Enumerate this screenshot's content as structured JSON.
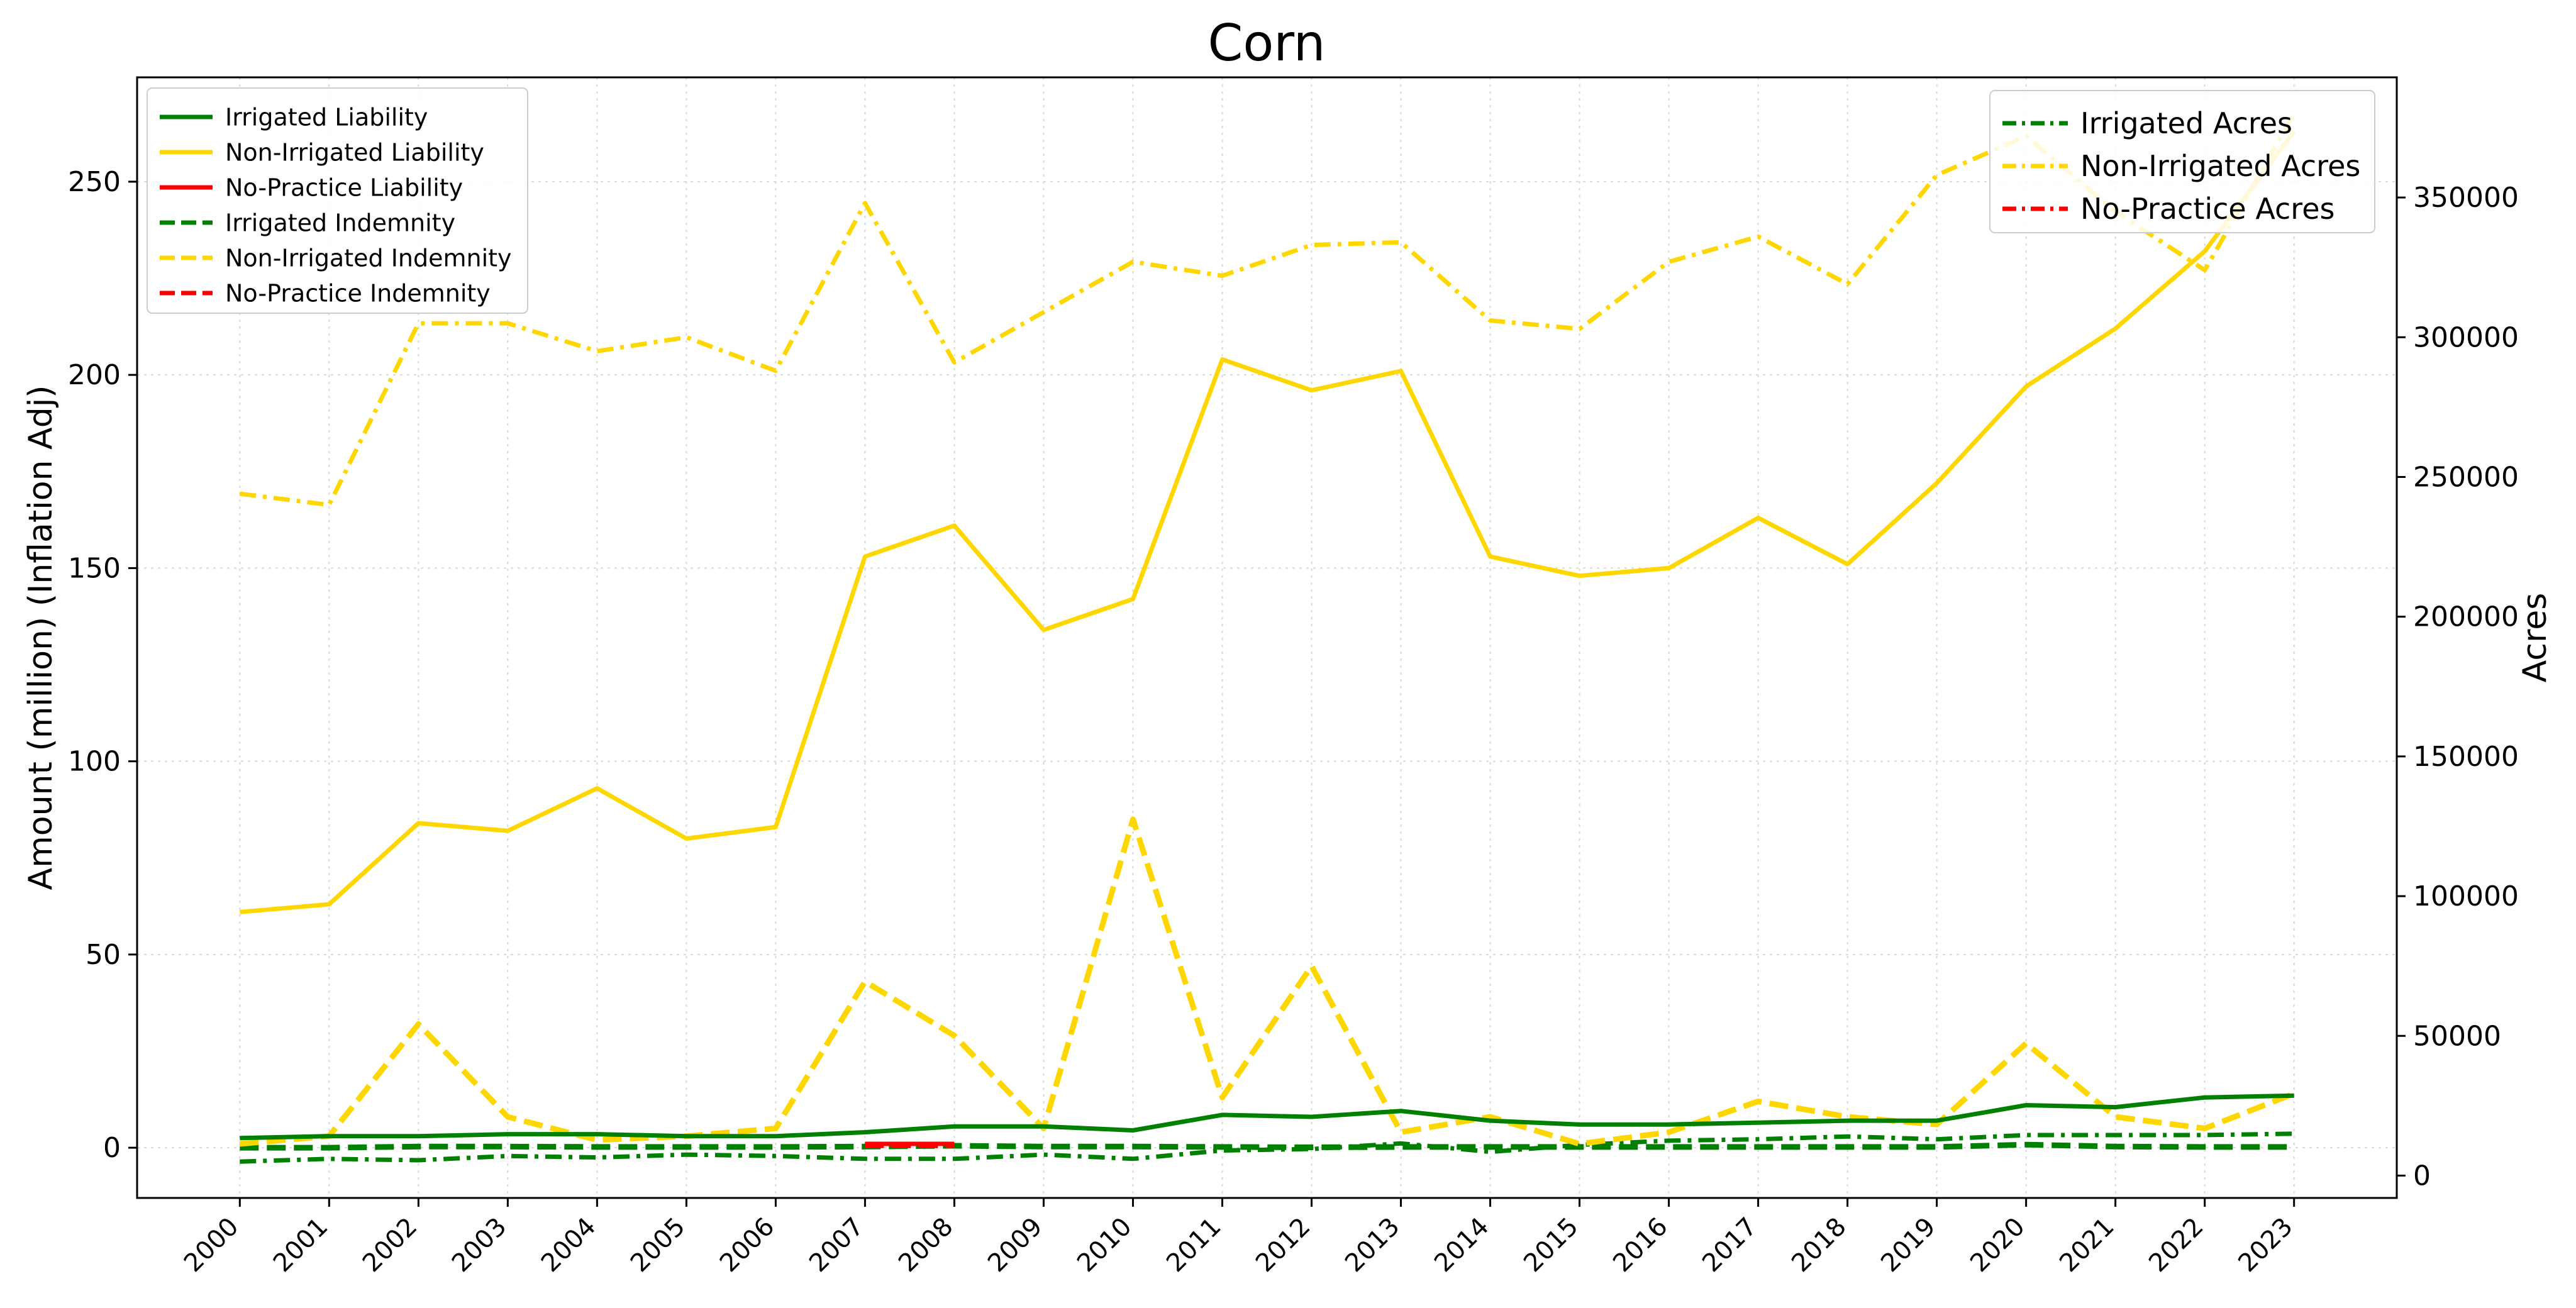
{
  "chart_data": {
    "type": "line",
    "title": "Corn",
    "xlabel": "",
    "ylabel": "Amount (million) (Inflation Adj)",
    "y2label": "Acres",
    "grid": true,
    "x": [
      "2000",
      "2001",
      "2002",
      "2003",
      "2004",
      "2005",
      "2006",
      "2007",
      "2008",
      "2009",
      "2010",
      "2011",
      "2012",
      "2013",
      "2014",
      "2015",
      "2016",
      "2017",
      "2018",
      "2019",
      "2020",
      "2021",
      "2022",
      "2023"
    ],
    "xlim": [
      1998.85,
      2024.15
    ],
    "ylim": [
      -13,
      277
    ],
    "y2lim": [
      -8000,
      393000
    ],
    "yticks": [
      "0",
      "50",
      "100",
      "150",
      "200",
      "250"
    ],
    "y2ticks": [
      "0",
      "50000",
      "100000",
      "150000",
      "200000",
      "250000",
      "300000",
      "350000"
    ],
    "colors": {
      "green": "#008000",
      "gold": "#FFD700",
      "red": "#FF0000",
      "grid": "#d9d9d9"
    },
    "legend_left_position": "upper left",
    "legend_right_position": "upper right",
    "series": [
      {
        "name": "Irrigated Liability",
        "axis": "left",
        "style": "solid",
        "color": "#008000",
        "x": [
          2000,
          2001,
          2002,
          2003,
          2004,
          2005,
          2006,
          2007,
          2008,
          2009,
          2010,
          2011,
          2012,
          2013,
          2014,
          2015,
          2016,
          2017,
          2018,
          2019,
          2020,
          2021,
          2022,
          2023
        ],
        "values": [
          2.5,
          3.0,
          3.0,
          3.5,
          3.5,
          3.0,
          3.0,
          4.0,
          5.5,
          5.5,
          4.5,
          8.5,
          8.0,
          9.5,
          7.0,
          6.0,
          6.0,
          6.5,
          7.0,
          7.0,
          11.0,
          10.5,
          13.0,
          13.5
        ]
      },
      {
        "name": "Non-Irrigated Liability",
        "axis": "left",
        "style": "solid",
        "color": "#FFD700",
        "x": [
          2000,
          2001,
          2002,
          2003,
          2004,
          2005,
          2006,
          2007,
          2008,
          2009,
          2010,
          2011,
          2012,
          2013,
          2014,
          2015,
          2016,
          2017,
          2018,
          2019,
          2020,
          2021,
          2022,
          2023
        ],
        "values": [
          61,
          63,
          84,
          82,
          93,
          80,
          83,
          153,
          161,
          134,
          142,
          204,
          196,
          201,
          153,
          148,
          150,
          163,
          151,
          172,
          197,
          212,
          232,
          263
        ]
      },
      {
        "name": "No-Practice Liability",
        "axis": "left",
        "style": "solid",
        "color": "#FF0000",
        "x": [
          2007,
          2008
        ],
        "values": [
          1.0,
          1.0
        ]
      },
      {
        "name": "Irrigated Indemnity",
        "axis": "left",
        "style": "dashed",
        "color": "#008000",
        "x": [
          2000,
          2001,
          2002,
          2003,
          2004,
          2005,
          2006,
          2007,
          2008,
          2009,
          2010,
          2011,
          2012,
          2013,
          2014,
          2015,
          2016,
          2017,
          2018,
          2019,
          2020,
          2021,
          2022,
          2023
        ],
        "values": [
          0,
          0,
          0.3,
          0.3,
          0.2,
          0.2,
          0.2,
          0.3,
          0.5,
          0.3,
          0.3,
          0.2,
          0.1,
          0.2,
          0.2,
          0.2,
          0.2,
          0.2,
          0.2,
          0.2,
          0.8,
          0.3,
          0.2,
          0.2
        ]
      },
      {
        "name": "Non-Irrigated Indemnity",
        "axis": "left",
        "style": "dashed",
        "color": "#FFD700",
        "x": [
          2000,
          2001,
          2002,
          2003,
          2004,
          2005,
          2006,
          2007,
          2008,
          2009,
          2010,
          2011,
          2012,
          2013,
          2014,
          2015,
          2016,
          2017,
          2018,
          2019,
          2020,
          2021,
          2022,
          2023
        ],
        "values": [
          1,
          3,
          32,
          8,
          2,
          3,
          5,
          43,
          29,
          5,
          85,
          13,
          47,
          4,
          8,
          1,
          4,
          12,
          8,
          6,
          27,
          8,
          5,
          14
        ]
      },
      {
        "name": "No-Practice Indemnity",
        "axis": "left",
        "style": "dashed",
        "color": "#FF0000",
        "x": [
          2007,
          2008
        ],
        "values": [
          0.6,
          0.6
        ]
      },
      {
        "name": "Irrigated Acres",
        "axis": "right",
        "style": "dashdot",
        "color": "#008000",
        "x": [
          2000,
          2001,
          2002,
          2003,
          2004,
          2005,
          2006,
          2007,
          2008,
          2009,
          2010,
          2011,
          2012,
          2013,
          2014,
          2015,
          2016,
          2017,
          2018,
          2019,
          2020,
          2021,
          2022,
          2023
        ],
        "values": [
          5000,
          6000,
          5500,
          7000,
          6500,
          7500,
          7000,
          6000,
          6000,
          7500,
          6000,
          9000,
          9500,
          11500,
          8500,
          11000,
          12500,
          13000,
          14000,
          13000,
          14500,
          14500,
          14500,
          15000
        ]
      },
      {
        "name": "Non-Irrigated Acres",
        "axis": "right",
        "style": "dashdot",
        "color": "#FFD700",
        "x": [
          2000,
          2001,
          2002,
          2003,
          2004,
          2005,
          2006,
          2007,
          2008,
          2009,
          2010,
          2011,
          2012,
          2013,
          2014,
          2015,
          2016,
          2017,
          2018,
          2019,
          2020,
          2021,
          2022,
          2023
        ],
        "values": [
          244000,
          240000,
          305000,
          305000,
          295000,
          300000,
          288000,
          348000,
          291000,
          309000,
          327000,
          322000,
          333000,
          334000,
          306000,
          303000,
          327000,
          336000,
          319000,
          358000,
          372000,
          345000,
          324000,
          380000
        ]
      },
      {
        "name": "No-Practice Acres",
        "axis": "right",
        "style": "dashdot",
        "color": "#FF0000",
        "x": [],
        "values": []
      }
    ]
  }
}
